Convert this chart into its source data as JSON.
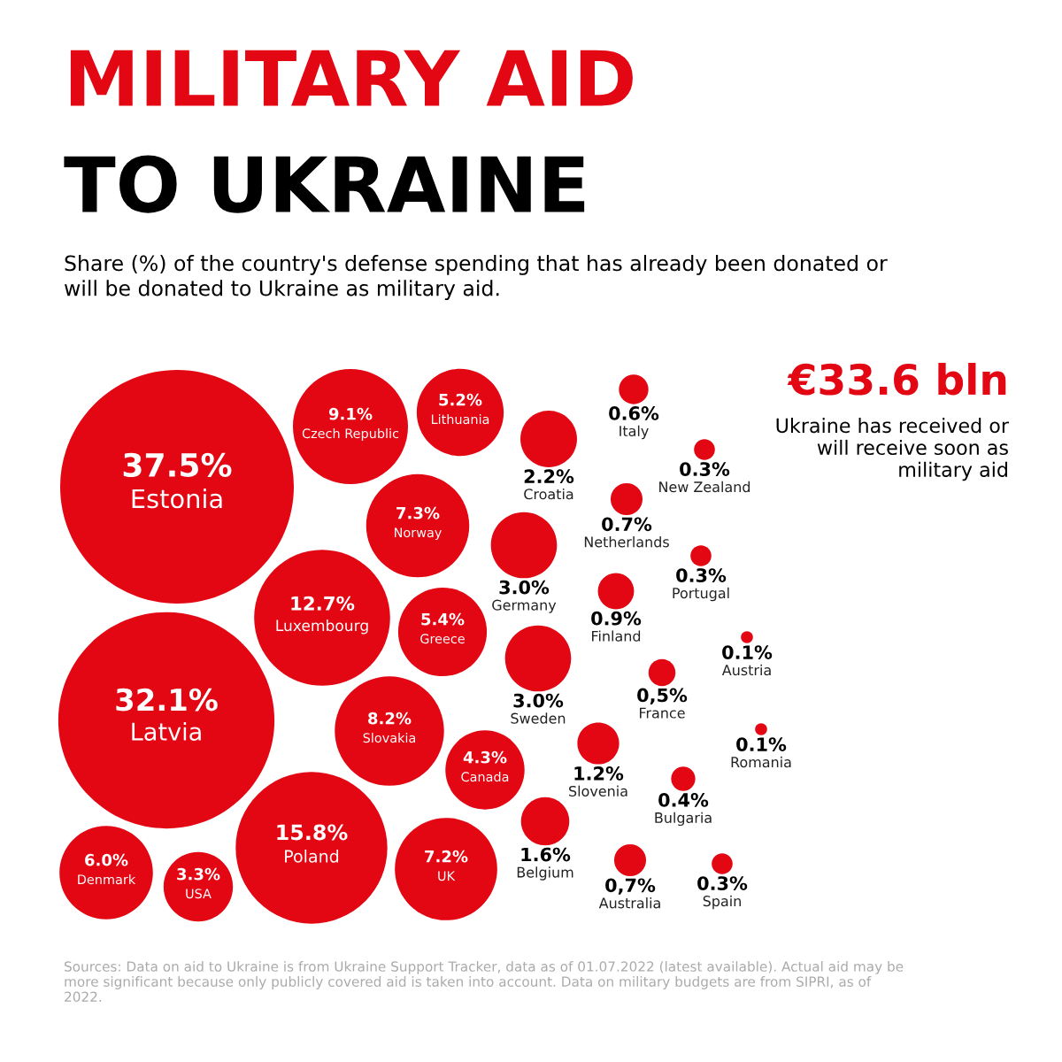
{
  "chart_data": {
    "type": "other",
    "title": "MILITARY AID TO UKRAINE",
    "subtitle": "Share (%) of the country's defense spending that has already been donated or will be donated to Ukraine as military aid.",
    "color": "#e30613",
    "categories": [
      "Estonia",
      "Latvia",
      "Poland",
      "Luxembourg",
      "Czech Republic",
      "Slovakia",
      "Norway",
      "UK",
      "Denmark",
      "Greece",
      "Lithuania",
      "Canada",
      "USA",
      "Germany",
      "Sweden",
      "Croatia",
      "Belgium",
      "Slovenia",
      "Finland",
      "Netherlands",
      "Australia",
      "Italy",
      "France",
      "Bulgaria",
      "Portugal",
      "New Zealand",
      "Spain",
      "Austria",
      "Romania"
    ],
    "values": [
      37.5,
      32.1,
      15.8,
      12.7,
      9.1,
      8.2,
      7.3,
      7.2,
      6.0,
      5.4,
      5.2,
      4.3,
      3.3,
      3.0,
      3.0,
      2.2,
      1.6,
      1.2,
      0.9,
      0.7,
      0.7,
      0.6,
      0.5,
      0.4,
      0.3,
      0.3,
      0.3,
      0.1,
      0.1
    ],
    "value_labels": [
      "37.5%",
      "32.1%",
      "15.8%",
      "12.7%",
      "9.1%",
      "8.2%",
      "7.3%",
      "7.2%",
      "6.0%",
      "5.4%",
      "5.2%",
      "4.3%",
      "3.3%",
      "3.0%",
      "3.0%",
      "2.2%",
      "1.6%",
      "1.2%",
      "0.9%",
      "0.7%",
      "0,7%",
      "0.6%",
      "0,5%",
      "0.4%",
      "0.3%",
      "0.3%",
      "0.3%",
      "0.1%",
      "0.1%"
    ],
    "annotations": [
      "€33.6 bln",
      "Ukraine has received or will receive soon as military aid",
      "Sources: Data on aid to Ukraine is from Ukraine Support Tracker, data as of 01.07.2022 (latest available). Actual aid may be more significant because only publicly covered aid is taken into account. Data on military budgets are from SIPRI, as of 2022."
    ]
  }
}
